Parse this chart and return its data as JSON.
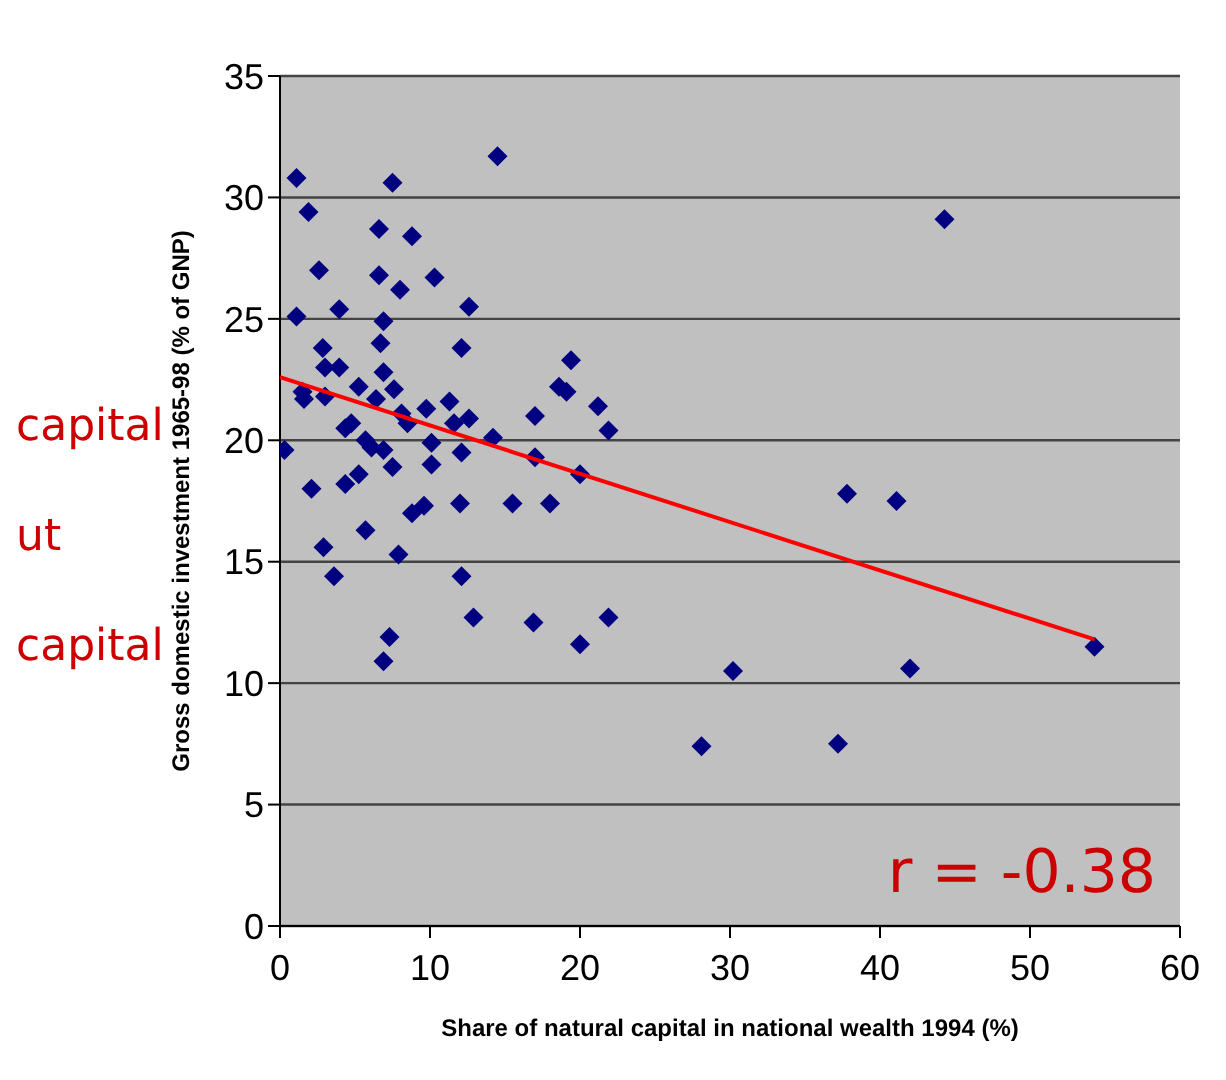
{
  "chart_data": {
    "type": "scatter",
    "xlabel": "Share of natural capital in national wealth 1994 (%)",
    "ylabel": "Gross domestic investment 1965-98 (% of GNP)",
    "xlim": [
      0,
      60
    ],
    "xticks": [
      0,
      10,
      20,
      30,
      40,
      50,
      60
    ],
    "ylim": [
      0,
      35
    ],
    "yticks": [
      0,
      5,
      10,
      15,
      20,
      25,
      30,
      35
    ],
    "grid": "y",
    "marker": "diamond",
    "annotations": [
      "r = -0.38",
      "capital",
      "ut",
      "capital"
    ],
    "series": [
      {
        "type": "scatter",
        "color": "#000080",
        "x": [
          0.3,
          1.1,
          1.9,
          1.1,
          2.6,
          1.6,
          1.5,
          3.0,
          2.85,
          3.0,
          3.95,
          3.95,
          5.25,
          4.35,
          4.75,
          5.7,
          6.1,
          6.6,
          6.6,
          6.9,
          6.7,
          6.9,
          6.4,
          7.5,
          7.6,
          8.0,
          8.8,
          8.1,
          8.5,
          6.9,
          7.5,
          9.75,
          10.3,
          10.1,
          11.3,
          12.1,
          12.6,
          11.6,
          12.6,
          12.1,
          14.2,
          14.5,
          17.0,
          17.0,
          18.6,
          19.1,
          19.4,
          20.0,
          21.2,
          21.9,
          2.1,
          4.35,
          5.25,
          5.7,
          2.9,
          3.6,
          7.9,
          8.8,
          9.6,
          10.1,
          12.0,
          12.1,
          12.9,
          7.3,
          6.9,
          15.5,
          18.0,
          16.9,
          20.0,
          21.9,
          37.8,
          41.1,
          30.2,
          42.0,
          28.1,
          37.2,
          54.3,
          44.3
        ],
        "values": [
          19.6,
          30.8,
          29.4,
          25.1,
          27.0,
          21.7,
          22.0,
          21.8,
          23.8,
          23.0,
          25.4,
          23.0,
          22.2,
          20.5,
          20.7,
          20.0,
          19.7,
          28.7,
          26.8,
          24.9,
          24.0,
          22.8,
          21.7,
          30.6,
          22.1,
          26.2,
          28.4,
          21.1,
          20.7,
          19.6,
          18.9,
          21.3,
          26.7,
          19.9,
          21.6,
          23.8,
          25.5,
          20.7,
          20.9,
          19.5,
          20.1,
          31.7,
          21.0,
          19.3,
          22.2,
          22.0,
          23.3,
          18.6,
          21.4,
          20.4,
          18.0,
          18.2,
          18.6,
          16.3,
          15.6,
          14.4,
          15.3,
          17.0,
          17.3,
          19.0,
          17.4,
          14.4,
          12.7,
          11.9,
          10.9,
          17.4,
          17.4,
          12.5,
          11.6,
          12.7,
          17.8,
          17.5,
          10.5,
          10.6,
          7.4,
          7.5,
          11.5,
          29.1
        ]
      },
      {
        "type": "line",
        "color": "#ff0000",
        "marker": "none",
        "x": [
          0,
          54.3
        ],
        "values": [
          22.6,
          11.8
        ]
      }
    ]
  }
}
